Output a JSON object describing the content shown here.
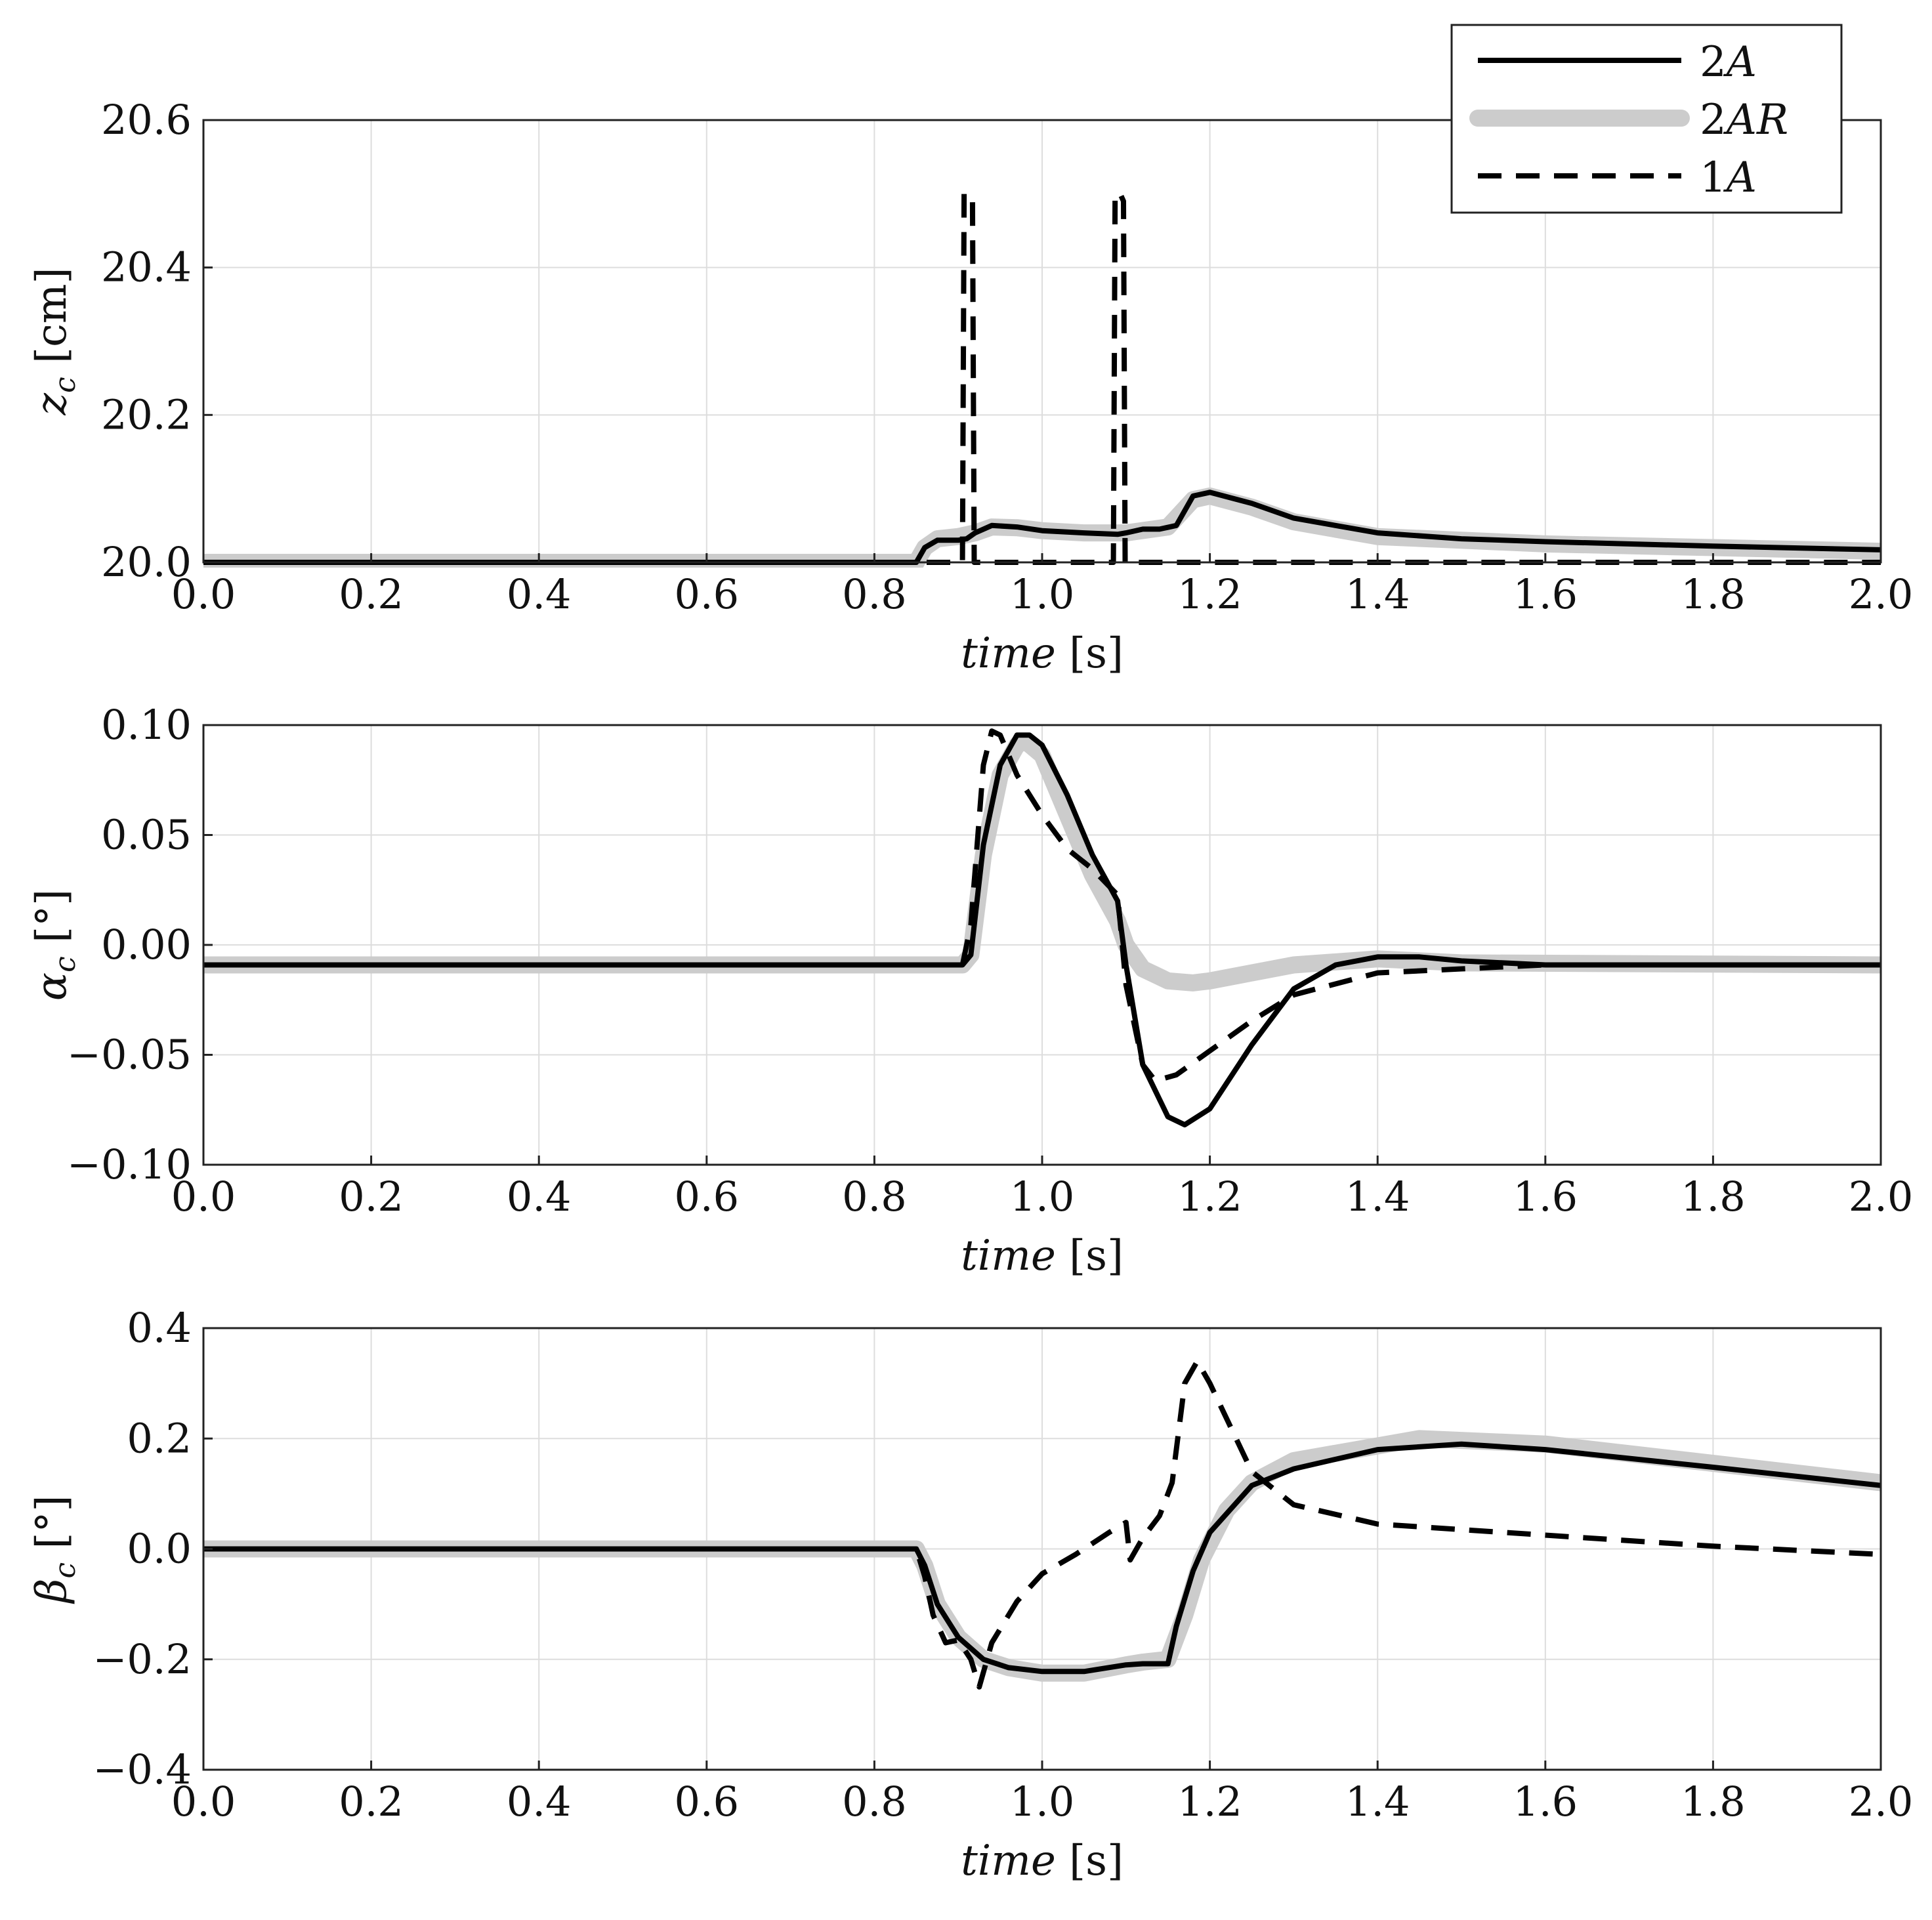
{
  "legend": {
    "position": "top-right",
    "items": [
      {
        "key": "2A",
        "lead": "2",
        "ital": "A",
        "style": "solid-black"
      },
      {
        "key": "2AR",
        "lead": "2",
        "ital": "AR",
        "style": "thick-gray"
      },
      {
        "key": "1A",
        "lead": "1",
        "ital": "A",
        "style": "dashed-black"
      }
    ]
  },
  "colors": {
    "2A": "#000000",
    "2AR": "#cccccc",
    "1A": "#000000",
    "grid": "#dddddd"
  },
  "chart_data": [
    {
      "type": "line",
      "xlabel": {
        "ital": "time",
        "unit": " [s]"
      },
      "ylabel": {
        "sym": "z",
        "sub": "c",
        "unit": " [cm]"
      },
      "xlim": [
        0,
        2
      ],
      "ylim": [
        20.0,
        20.6
      ],
      "xticks": [
        "0.0",
        "0.2",
        "0.4",
        "0.6",
        "0.8",
        "1.0",
        "1.2",
        "1.4",
        "1.6",
        "1.8",
        "2.0"
      ],
      "yticks": [
        "20.0",
        "20.2",
        "20.4",
        "20.6"
      ],
      "grid": true,
      "series": [
        {
          "name": "2A",
          "x": [
            0,
            0.85,
            0.86,
            0.875,
            0.9,
            0.91,
            0.92,
            0.94,
            0.97,
            1.0,
            1.05,
            1.09,
            1.1,
            1.12,
            1.14,
            1.16,
            1.18,
            1.2,
            1.25,
            1.3,
            1.4,
            1.5,
            1.6,
            1.8,
            2.0
          ],
          "y": [
            20.0,
            20.0,
            20.02,
            20.03,
            20.03,
            20.032,
            20.04,
            20.05,
            20.048,
            20.043,
            20.04,
            20.038,
            20.04,
            20.045,
            20.045,
            20.05,
            20.09,
            20.095,
            20.08,
            20.06,
            20.04,
            20.032,
            20.028,
            20.022,
            20.017
          ]
        },
        {
          "name": "2AR",
          "x": [
            0,
            0.85,
            0.86,
            0.875,
            0.9,
            0.92,
            0.94,
            0.97,
            1.0,
            1.05,
            1.1,
            1.15,
            1.18,
            1.2,
            1.25,
            1.3,
            1.4,
            1.5,
            1.6,
            1.8,
            2.0
          ],
          "y": [
            20.0,
            20.0,
            20.02,
            20.032,
            20.035,
            20.04,
            20.048,
            20.047,
            20.043,
            20.04,
            20.04,
            20.048,
            20.085,
            20.09,
            20.075,
            20.055,
            20.035,
            20.03,
            20.025,
            20.02,
            20.015
          ]
        },
        {
          "name": "1A",
          "x": [
            0,
            0.905,
            0.907,
            0.913,
            0.917,
            0.919,
            1.0,
            1.085,
            1.087,
            1.093,
            1.097,
            1.099,
            2.0
          ],
          "y": [
            20.0,
            20.0,
            20.5,
            20.5,
            20.49,
            20.0,
            20.0,
            20.0,
            20.5,
            20.5,
            20.49,
            20.0,
            20.0
          ]
        }
      ]
    },
    {
      "type": "line",
      "xlabel": {
        "ital": "time",
        "unit": " [s]"
      },
      "ylabel": {
        "sym": "α",
        "sub": "c",
        "unit": " [°]"
      },
      "xlim": [
        0,
        2
      ],
      "ylim": [
        -0.1,
        0.12
      ],
      "xticks": [
        "0.0",
        "0.2",
        "0.4",
        "0.6",
        "0.8",
        "1.0",
        "1.2",
        "1.4",
        "1.6",
        "1.8",
        "2.0"
      ],
      "yticks": [
        "−0.10",
        "−0.05",
        "0.00",
        "0.05",
        "0.10"
      ],
      "grid": true,
      "series": [
        {
          "name": "2A",
          "x": [
            0,
            0.905,
            0.915,
            0.93,
            0.95,
            0.97,
            0.985,
            1.0,
            1.03,
            1.06,
            1.09,
            1.1,
            1.12,
            1.15,
            1.17,
            1.2,
            1.25,
            1.3,
            1.35,
            1.4,
            1.45,
            1.5,
            1.55,
            1.6,
            2.0
          ],
          "y": [
            0,
            0,
            0.005,
            0.06,
            0.1,
            0.115,
            0.115,
            0.11,
            0.085,
            0.055,
            0.032,
            0.0,
            -0.05,
            -0.076,
            -0.08,
            -0.072,
            -0.04,
            -0.012,
            0.0,
            0.004,
            0.004,
            0.002,
            0.001,
            0,
            0
          ]
        },
        {
          "name": "2AR",
          "x": [
            0,
            0.905,
            0.915,
            0.93,
            0.95,
            0.97,
            0.98,
            1.0,
            1.03,
            1.06,
            1.09,
            1.1,
            1.12,
            1.15,
            1.18,
            1.2,
            1.25,
            1.3,
            1.4,
            1.5,
            2.0
          ],
          "y": [
            0,
            0,
            0.005,
            0.055,
            0.095,
            0.11,
            0.112,
            0.105,
            0.075,
            0.045,
            0.022,
            0.01,
            -0.002,
            -0.008,
            -0.009,
            -0.008,
            -0.004,
            0.0,
            0.003,
            0.001,
            0
          ]
        },
        {
          "name": "1A",
          "x": [
            0,
            0.905,
            0.915,
            0.93,
            0.94,
            0.95,
            0.97,
            1.0,
            1.03,
            1.06,
            1.09,
            1.1,
            1.12,
            1.135,
            1.16,
            1.2,
            1.25,
            1.3,
            1.4,
            1.5,
            1.6,
            2.0
          ],
          "y": [
            0,
            0,
            0.02,
            0.1,
            0.117,
            0.115,
            0.095,
            0.075,
            0.058,
            0.048,
            0.035,
            -0.01,
            -0.05,
            -0.058,
            -0.055,
            -0.043,
            -0.028,
            -0.015,
            -0.004,
            -0.002,
            0,
            0
          ]
        }
      ]
    },
    {
      "type": "line",
      "xlabel": {
        "ital": "time",
        "unit": " [s]"
      },
      "ylabel": {
        "sym": "β",
        "sub": "c",
        "unit": " [°]"
      },
      "xlim": [
        0,
        2
      ],
      "ylim": [
        -0.4,
        0.4
      ],
      "xticks": [
        "0.0",
        "0.2",
        "0.4",
        "0.6",
        "0.8",
        "1.0",
        "1.2",
        "1.4",
        "1.6",
        "1.8",
        "2.0"
      ],
      "yticks": [
        "−0.4",
        "−0.2",
        "0.0",
        "0.2",
        "0.4"
      ],
      "grid": true,
      "series": [
        {
          "name": "2A",
          "x": [
            0,
            0.85,
            0.86,
            0.875,
            0.9,
            0.93,
            0.96,
            1.0,
            1.05,
            1.1,
            1.12,
            1.15,
            1.16,
            1.18,
            1.2,
            1.25,
            1.3,
            1.4,
            1.5,
            1.6,
            1.8,
            2.0
          ],
          "y": [
            0,
            0,
            -0.03,
            -0.1,
            -0.16,
            -0.2,
            -0.215,
            -0.222,
            -0.222,
            -0.21,
            -0.208,
            -0.208,
            -0.14,
            -0.04,
            0.03,
            0.115,
            0.145,
            0.18,
            0.19,
            0.18,
            0.148,
            0.115
          ]
        },
        {
          "name": "2AR",
          "x": [
            0,
            0.85,
            0.86,
            0.875,
            0.9,
            0.93,
            0.96,
            1.0,
            1.05,
            1.1,
            1.12,
            1.15,
            1.17,
            1.19,
            1.22,
            1.25,
            1.3,
            1.45,
            1.6,
            1.8,
            2.0
          ],
          "y": [
            0,
            0,
            -0.03,
            -0.1,
            -0.16,
            -0.2,
            -0.215,
            -0.225,
            -0.225,
            -0.21,
            -0.205,
            -0.2,
            -0.12,
            -0.02,
            0.07,
            0.12,
            0.16,
            0.2,
            0.19,
            0.155,
            0.12
          ]
        },
        {
          "name": "1A",
          "x": [
            0,
            0.85,
            0.86,
            0.87,
            0.885,
            0.9,
            0.915,
            0.925,
            0.94,
            0.97,
            1.0,
            1.04,
            1.08,
            1.1,
            1.105,
            1.12,
            1.14,
            1.155,
            1.17,
            1.185,
            1.2,
            1.25,
            1.3,
            1.4,
            1.6,
            1.8,
            2.0
          ],
          "y": [
            0,
            0,
            -0.05,
            -0.12,
            -0.17,
            -0.165,
            -0.2,
            -0.25,
            -0.17,
            -0.095,
            -0.045,
            -0.01,
            0.03,
            0.048,
            -0.02,
            0.02,
            0.06,
            0.12,
            0.3,
            0.34,
            0.3,
            0.14,
            0.08,
            0.045,
            0.025,
            0.005,
            -0.01
          ]
        }
      ]
    }
  ]
}
